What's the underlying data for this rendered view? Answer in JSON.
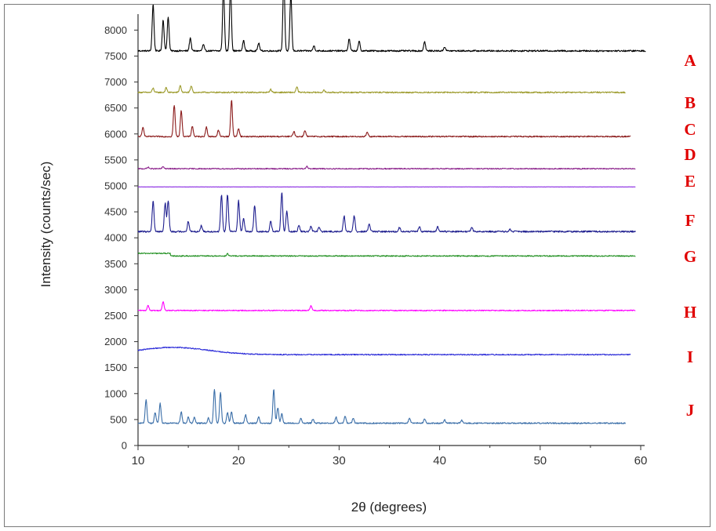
{
  "chart_data": {
    "type": "line",
    "title": "",
    "xlabel": "2θ (degrees)",
    "ylabel": "Intensity (counts/sec)",
    "xlim": [
      10,
      60
    ],
    "ylim": [
      0,
      8300
    ],
    "x_ticks": [
      "10",
      "20",
      "30",
      "40",
      "50",
      "60"
    ],
    "y_ticks": [
      "0",
      "500",
      "1000",
      "1500",
      "2000",
      "2500",
      "3000",
      "3500",
      "4000",
      "4500",
      "5000",
      "5500",
      "6000",
      "6500",
      "7000",
      "7500",
      "8000"
    ],
    "grid": false,
    "series": [
      {
        "name": "A",
        "color": "#000000",
        "baseline": 7600,
        "x_end": 60.5,
        "noise": 15,
        "peaks": [
          [
            11.5,
            900
          ],
          [
            12.5,
            600
          ],
          [
            13,
            650
          ],
          [
            15.2,
            250
          ],
          [
            16.5,
            120
          ],
          [
            18.5,
            1250
          ],
          [
            19.2,
            1250
          ],
          [
            20.5,
            200
          ],
          [
            22,
            150
          ],
          [
            24.5,
            1400
          ],
          [
            25.2,
            1100
          ],
          [
            27.5,
            100
          ],
          [
            31,
            230
          ],
          [
            32,
            180
          ],
          [
            38.5,
            180
          ],
          [
            40.5,
            80
          ]
        ]
      },
      {
        "name": "B",
        "color": "#9c9a2a",
        "baseline": 6800,
        "x_end": 58.5,
        "noise": 12,
        "peaks": [
          [
            11.5,
            80
          ],
          [
            12.8,
            90
          ],
          [
            14.2,
            130
          ],
          [
            15.3,
            120
          ],
          [
            23.2,
            60
          ],
          [
            25.8,
            100
          ],
          [
            28.5,
            40
          ]
        ]
      },
      {
        "name": "C",
        "color": "#8b1a1a",
        "baseline": 5950,
        "x_end": 59,
        "noise": 12,
        "peaks": [
          [
            10.5,
            180
          ],
          [
            13.6,
            600
          ],
          [
            14.3,
            500
          ],
          [
            15.4,
            200
          ],
          [
            16.8,
            180
          ],
          [
            18,
            120
          ],
          [
            19.3,
            700
          ],
          [
            20,
            160
          ],
          [
            25.5,
            100
          ],
          [
            26.6,
            120
          ],
          [
            32.8,
            90
          ]
        ]
      },
      {
        "name": "D",
        "color": "#8a1f8a",
        "baseline": 5330,
        "x_end": 59.5,
        "noise": 10,
        "peaks": [
          [
            11,
            30
          ],
          [
            12.5,
            40
          ],
          [
            26.8,
            50
          ]
        ]
      },
      {
        "name": "E",
        "color": "#8a2be2",
        "baseline": 4980,
        "x_end": 59.5,
        "noise": 2,
        "peaks": []
      },
      {
        "name": "F",
        "color": "#1f1f8f",
        "baseline": 4120,
        "x_end": 59.5,
        "noise": 15,
        "peaks": [
          [
            11.5,
            600
          ],
          [
            12.7,
            550
          ],
          [
            13,
            600
          ],
          [
            15,
            200
          ],
          [
            16.3,
            120
          ],
          [
            18.3,
            700
          ],
          [
            18.9,
            720
          ],
          [
            20,
            600
          ],
          [
            20.5,
            250
          ],
          [
            21.6,
            500
          ],
          [
            23.2,
            200
          ],
          [
            24.3,
            750
          ],
          [
            24.8,
            400
          ],
          [
            26,
            120
          ],
          [
            27.2,
            100
          ],
          [
            28,
            80
          ],
          [
            30.5,
            300
          ],
          [
            31.5,
            300
          ],
          [
            33,
            150
          ],
          [
            36,
            80
          ],
          [
            38,
            100
          ],
          [
            39.8,
            90
          ],
          [
            43.2,
            80
          ],
          [
            47,
            40
          ]
        ]
      },
      {
        "name": "G",
        "color": "#1f8f1f",
        "baseline": 3650,
        "x_end": 59.5,
        "noise": 10,
        "bumps": [
          [
            10,
            13.2,
            50
          ]
        ],
        "peaks": [
          [
            18.9,
            40
          ]
        ]
      },
      {
        "name": "H",
        "color": "#ff00ff",
        "baseline": 2600,
        "x_end": 59.5,
        "noise": 10,
        "peaks": [
          [
            11,
            100
          ],
          [
            12.5,
            170
          ],
          [
            27.2,
            90
          ]
        ]
      },
      {
        "name": "I",
        "color": "#2a2ad8",
        "baseline": 1750,
        "x_end": 59,
        "noise": 10,
        "hump": [
          13.5,
          3.5,
          140
        ],
        "peaks": []
      },
      {
        "name": "J",
        "color": "#3a6ea8",
        "baseline": 430,
        "x_end": 58.5,
        "noise": 12,
        "peaks": [
          [
            10.8,
            450
          ],
          [
            11.7,
            200
          ],
          [
            12.2,
            380
          ],
          [
            14.3,
            220
          ],
          [
            15,
            120
          ],
          [
            15.6,
            120
          ],
          [
            17,
            100
          ],
          [
            17.6,
            650
          ],
          [
            18.2,
            600
          ],
          [
            18.9,
            200
          ],
          [
            19.3,
            220
          ],
          [
            20.7,
            160
          ],
          [
            22,
            120
          ],
          [
            23.5,
            650
          ],
          [
            23.9,
            300
          ],
          [
            24.3,
            180
          ],
          [
            26.2,
            90
          ],
          [
            27.4,
            80
          ],
          [
            29.7,
            120
          ],
          [
            30.6,
            130
          ],
          [
            31.4,
            90
          ],
          [
            37,
            90
          ],
          [
            38.5,
            80
          ],
          [
            40.5,
            60
          ],
          [
            42.2,
            60
          ]
        ]
      }
    ],
    "labels": [
      "A",
      "B",
      "C",
      "D",
      "E",
      "F",
      "G",
      "H",
      "I",
      "J"
    ]
  }
}
